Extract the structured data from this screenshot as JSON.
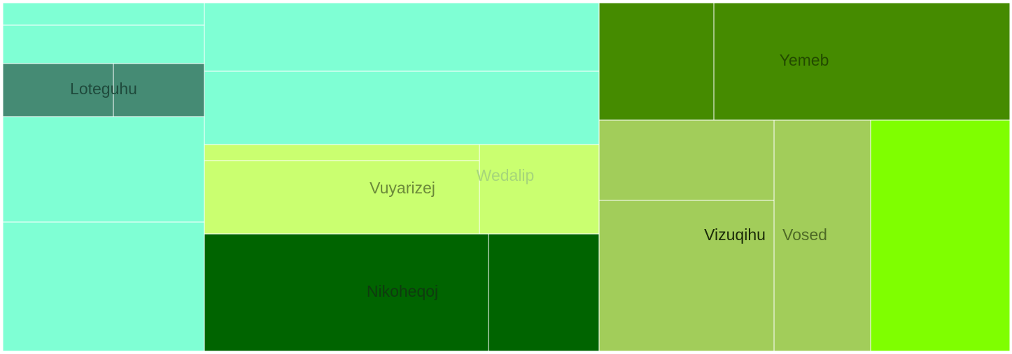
{
  "chart_data": {
    "type": "treemap",
    "title": "",
    "colors": {
      "aquamarine": "#7fffd4",
      "dark_sea_green": "#458b74",
      "pale_lime": "#caff70",
      "dark_green": "#006400",
      "olive_green": "#458b00",
      "sage": "#a2cd5a",
      "chartreuse": "#7fff00"
    },
    "groups": [
      {
        "label": "Loteguhu",
        "label_color": "#1f4a3c",
        "color": "#7fffd4",
        "highlight_color": "#458b74"
      },
      {
        "label": "Vuyarizej",
        "label_color": "#6b8a3a",
        "color": "#caff70"
      },
      {
        "label": "Wedalip",
        "label_color": "#a6d67a",
        "color": "#caff70"
      },
      {
        "label": "Nikoheqoj",
        "label_color": "#0f3a0f",
        "color": "#006400"
      },
      {
        "label": "Yemeb",
        "label_color": "#234a00",
        "color": "#458b00"
      },
      {
        "label": "Vizuqihu",
        "label_color": "#1a2a08",
        "color": "#a2cd5a"
      },
      {
        "label": "Vosed",
        "label_color": "#4e6a26",
        "color": "#a2cd5a"
      },
      {
        "label": "",
        "color": "#7fff00"
      }
    ]
  }
}
